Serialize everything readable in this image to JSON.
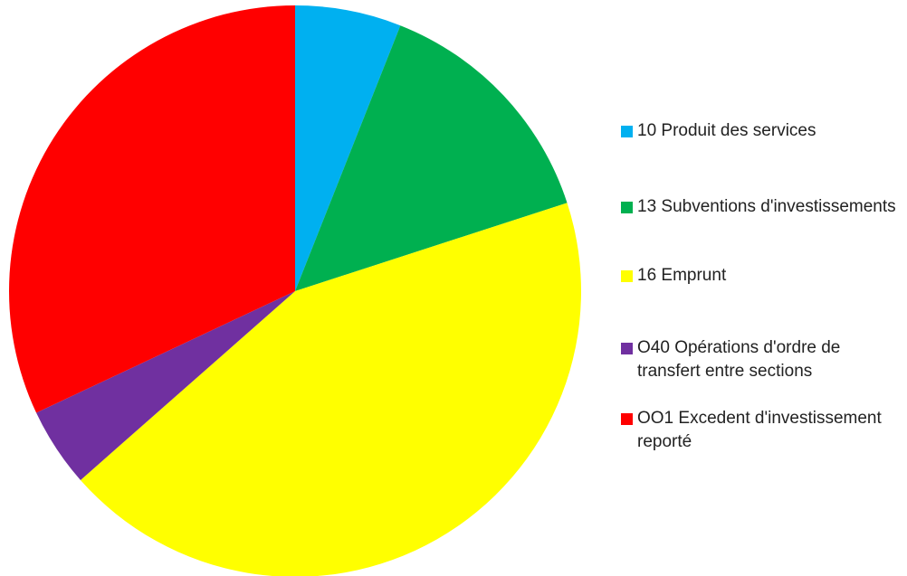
{
  "chart_data": {
    "type": "pie",
    "title": "",
    "start_angle_deg": 0,
    "direction": "clockwise",
    "legend_position": "right",
    "slices": [
      {
        "label": "10 Produit des services",
        "value": 6.0,
        "color": "#00B0F0"
      },
      {
        "label": "13 Subventions d'investissements",
        "value": 14.0,
        "color": "#00B050"
      },
      {
        "label": "16 Emprunt",
        "value": 43.5,
        "color": "#FFFF00"
      },
      {
        "label": "O40 Opérations d'ordre de transfert entre sections",
        "value": 4.5,
        "color": "#7030A0"
      },
      {
        "label": "OO1 Excedent d'investissement reporté",
        "value": 32.0,
        "color": "#FF0000"
      }
    ]
  }
}
